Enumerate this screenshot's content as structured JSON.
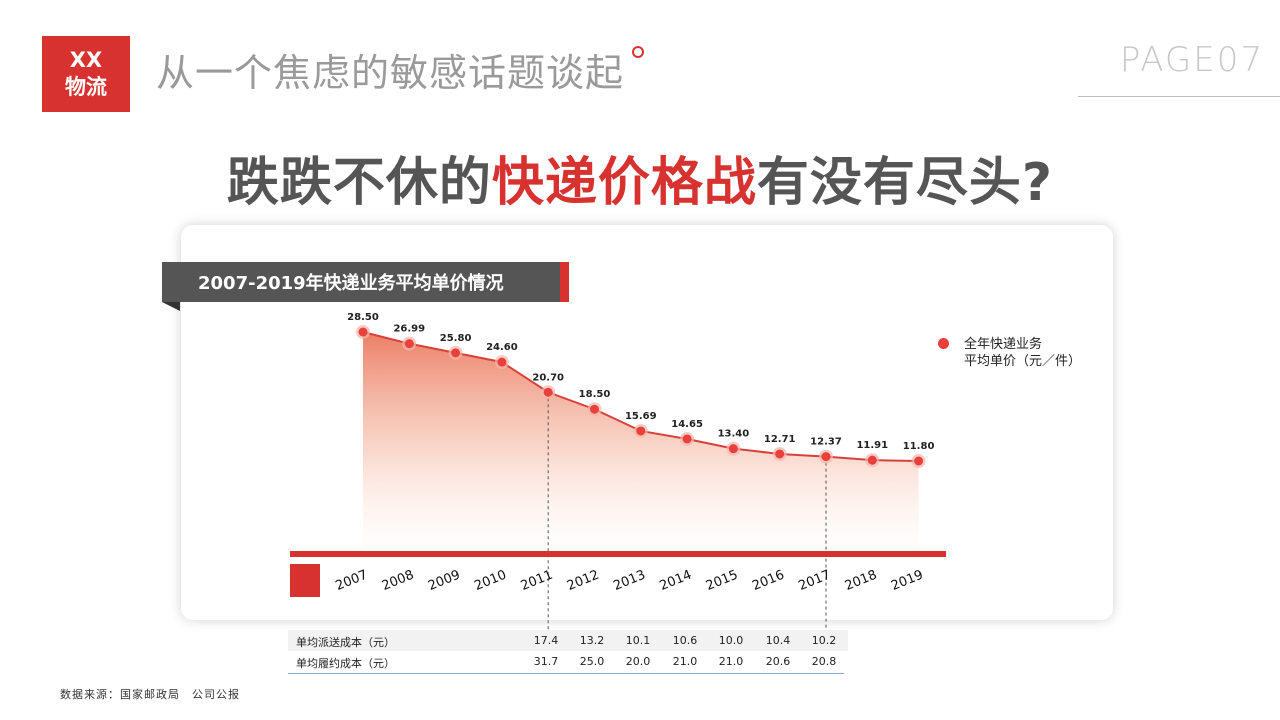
{
  "logo": {
    "line1": "XX",
    "line2": "物流"
  },
  "header": {
    "title": "从一个焦虑的敏感话题谈起",
    "page": "PAGE07"
  },
  "headline": {
    "part1": "跌跌不休的",
    "highlight": "快递价格战",
    "part2": "有没有尽头?"
  },
  "chart_title": "2007-2019年快递业务平均单价情况",
  "legend": {
    "line1": "全年快递业务",
    "line2": "平均单价（元／件）"
  },
  "colors": {
    "accent": "#d7322f",
    "line": "#d8403a",
    "dark": "#555555"
  },
  "chart_data": {
    "type": "area",
    "categories": [
      "2007",
      "2008",
      "2009",
      "2010",
      "2011",
      "2012",
      "2013",
      "2014",
      "2015",
      "2016",
      "2017",
      "2018",
      "2019"
    ],
    "series": [
      {
        "name": "全年快递业务平均单价（元／件）",
        "values": [
          28.5,
          26.99,
          25.8,
          24.6,
          20.7,
          18.5,
          15.69,
          14.65,
          13.4,
          12.71,
          12.37,
          11.91,
          11.8
        ],
        "labels": [
          "28.50",
          "26.99",
          "25.80",
          "24.60",
          "20.70",
          "18.50",
          "15.69",
          "14.65",
          "13.40",
          "12.71",
          "12.37",
          "11.91",
          "11.80"
        ]
      }
    ],
    "reference_lines": [
      "2011",
      "2017"
    ],
    "grid": false,
    "legend_position": "right"
  },
  "cost_table": {
    "rows": [
      {
        "label": "单均派送成本（元）",
        "values": [
          "17.4",
          "13.2",
          "10.1",
          "10.6",
          "10.0",
          "10.4",
          "10.2"
        ]
      },
      {
        "label": "单均履约成本（元）",
        "values": [
          "31.7",
          "25.0",
          "20.0",
          "21.0",
          "21.0",
          "20.6",
          "20.8"
        ]
      }
    ]
  },
  "source": "数据来源：国家邮政局　公司公报"
}
